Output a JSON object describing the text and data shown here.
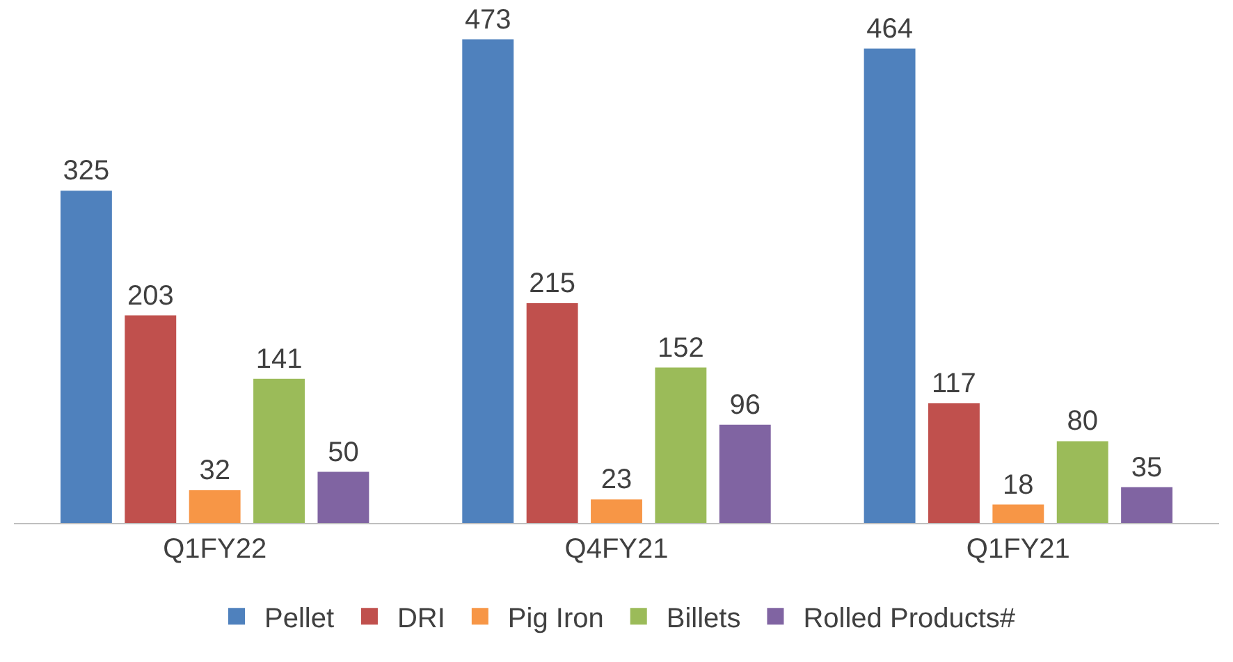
{
  "chart_data": {
    "type": "bar",
    "categories": [
      "Q1FY22",
      "Q4FY21",
      "Q1FY21"
    ],
    "series": [
      {
        "name": "Pellet",
        "color": "#4f81bd",
        "values": [
          325,
          473,
          464
        ]
      },
      {
        "name": "DRI",
        "color": "#c0504d",
        "values": [
          203,
          215,
          117
        ]
      },
      {
        "name": "Pig Iron",
        "color": "#f79646",
        "values": [
          32,
          23,
          18
        ]
      },
      {
        "name": "Billets",
        "color": "#9bbb59",
        "values": [
          141,
          152,
          80
        ]
      },
      {
        "name": "Rolled Products#",
        "color": "#8064a2",
        "values": [
          50,
          96,
          35
        ]
      }
    ],
    "data_labels": true,
    "legend": "bottom"
  }
}
